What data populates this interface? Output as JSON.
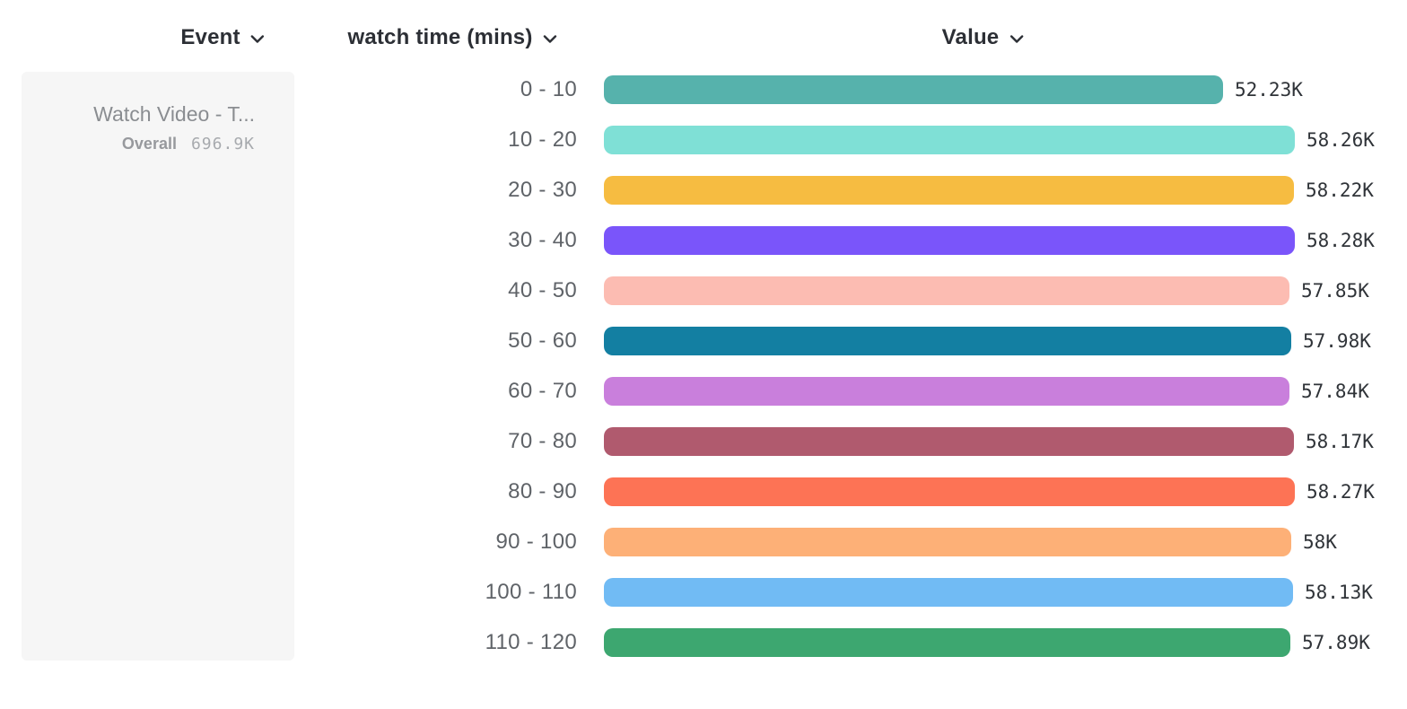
{
  "header": {
    "event_label": "Event",
    "series_label": "watch time (mins)",
    "value_label": "Value"
  },
  "event_card": {
    "title": "Watch Video - T...",
    "overall_label": "Overall",
    "overall_value": "696.9K"
  },
  "chart_data": {
    "type": "bar",
    "orientation": "horizontal",
    "title": "",
    "xlabel": "Value",
    "ylabel": "watch time (mins)",
    "xlim": [
      0,
      58.28
    ],
    "grid": false,
    "categories": [
      "0 - 10",
      "10 - 20",
      "20 - 30",
      "30 - 40",
      "40 - 50",
      "50 - 60",
      "60 - 70",
      "70 - 80",
      "80 - 90",
      "90 - 100",
      "100 - 110",
      "110 - 120"
    ],
    "values_thousands": [
      52.23,
      58.26,
      58.22,
      58.28,
      57.85,
      57.98,
      57.84,
      58.17,
      58.27,
      58.0,
      58.13,
      57.89
    ],
    "value_labels": [
      "52.23K",
      "58.26K",
      "58.22K",
      "58.28K",
      "57.85K",
      "57.98K",
      "57.84K",
      "58.17K",
      "58.27K",
      "58K",
      "58.13K",
      "57.89K"
    ],
    "bar_colors": [
      "#56b2ac",
      "#7fe0d6",
      "#f6bc41",
      "#7a55fa",
      "#fcbcb2",
      "#137fa2",
      "#c97fdc",
      "#b05a6e",
      "#fd7355",
      "#fdb077",
      "#71bbf4",
      "#3da770"
    ],
    "legend": {
      "series_name": "Watch Video - T...",
      "overall_label": "Overall",
      "overall_value": "696.9K"
    }
  },
  "colors": {
    "header_text": "#2c2f35",
    "category_text": "#5f6368",
    "value_text": "#2f3338",
    "card_bg": "#f6f6f6",
    "card_title_text": "#8a8d91",
    "card_overall_text": "#97999d"
  }
}
